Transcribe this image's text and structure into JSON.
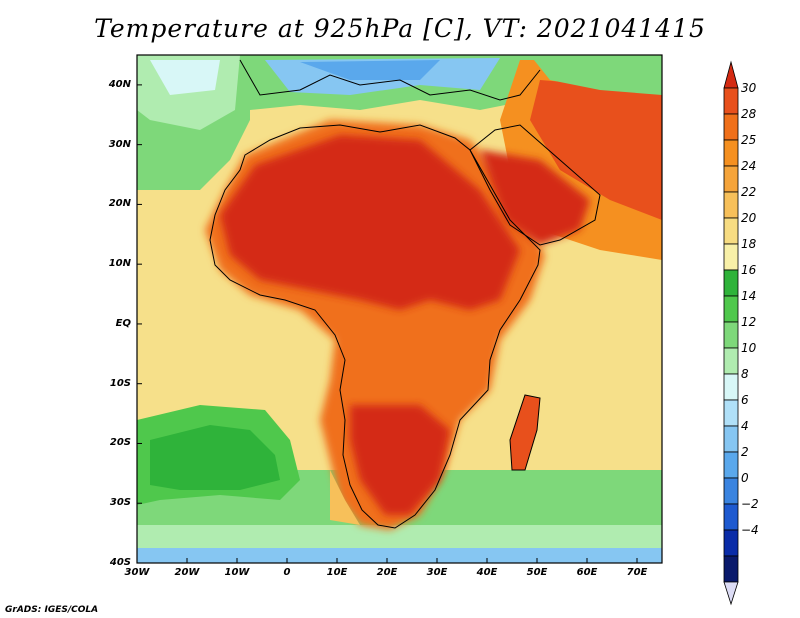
{
  "title": "Temperature at 925hPa [C], VT: 2021041415",
  "credit": "GrADS: IGES/COLA",
  "map": {
    "lon_range": [
      -30,
      75
    ],
    "lat_range": [
      -40,
      45
    ],
    "lat_labels": [
      {
        "lat": 40,
        "text": "40N"
      },
      {
        "lat": 30,
        "text": "30N"
      },
      {
        "lat": 20,
        "text": "20N"
      },
      {
        "lat": 10,
        "text": "10N"
      },
      {
        "lat": 0,
        "text": "EQ"
      },
      {
        "lat": -10,
        "text": "10S"
      },
      {
        "lat": -20,
        "text": "20S"
      },
      {
        "lat": -30,
        "text": "30S"
      },
      {
        "lat": -40,
        "text": "40S"
      }
    ],
    "lon_labels": [
      {
        "lon": -30,
        "text": "30W"
      },
      {
        "lon": -20,
        "text": "20W"
      },
      {
        "lon": -10,
        "text": "10W"
      },
      {
        "lon": 0,
        "text": "0"
      },
      {
        "lon": 10,
        "text": "10E"
      },
      {
        "lon": 20,
        "text": "20E"
      },
      {
        "lon": 30,
        "text": "30E"
      },
      {
        "lon": 40,
        "text": "40E"
      },
      {
        "lon": 50,
        "text": "50E"
      },
      {
        "lon": 60,
        "text": "60E"
      },
      {
        "lon": 70,
        "text": "70E"
      }
    ],
    "ocean_color": "#f6e08a",
    "coastline_color": "#000000"
  },
  "colorbar": {
    "levels": [
      "30",
      "28",
      "25",
      "24",
      "22",
      "20",
      "18",
      "16",
      "14",
      "12",
      "10",
      "8",
      "6",
      "4",
      "2",
      "0",
      "−2",
      "−4"
    ],
    "colors": [
      "#e8501c",
      "#f0701a",
      "#f59020",
      "#f5a43a",
      "#f7c05a",
      "#f7dc82",
      "#f8f0a8",
      "#2fb33a",
      "#4fc84c",
      "#7ed87a",
      "#b0ecb0",
      "#d8f7f7",
      "#b0e0f8",
      "#86c6f2",
      "#5aa8ec",
      "#3a84e0",
      "#1e5ad0",
      "#0a2ca8",
      "#0a1a6c"
    ],
    "top_color": "#d42a12",
    "bottom_color": "#dcdcf5"
  }
}
